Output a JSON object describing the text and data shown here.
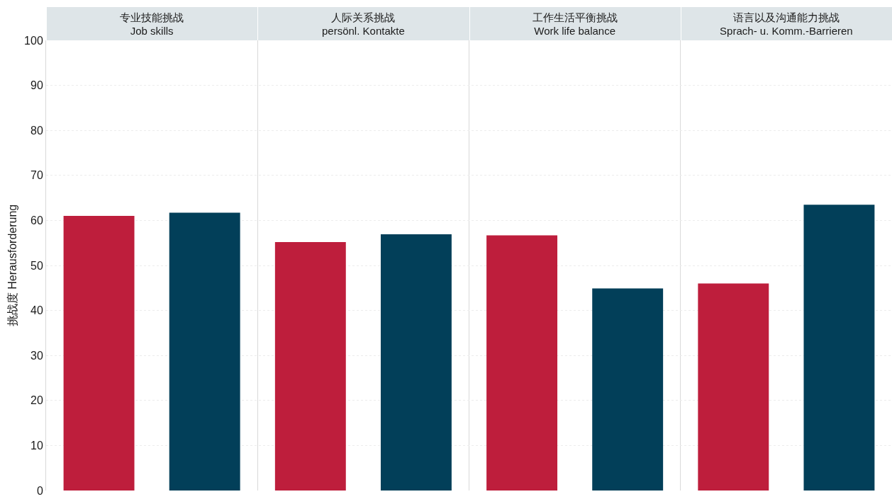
{
  "chart_data": {
    "type": "bar",
    "ylabel": "挑战度 Herausforderung",
    "categories": [
      "专业技能挑战\nJob skills",
      "人际关系挑战\npersönl. Kontakte",
      "工作生活平衡挑战\nWork life balance",
      "语言以及沟通能力挑战\nSprach- u. Komm.-Barrieren"
    ],
    "series": [
      {
        "color": "#be1e3c",
        "values": [
          61.0,
          55.2,
          56.7,
          46.0
        ]
      },
      {
        "color": "#023f59",
        "values": [
          61.7,
          56.9,
          44.9,
          63.5
        ]
      }
    ],
    "ylim": [
      0,
      100
    ],
    "yticks": [
      0,
      10,
      20,
      30,
      40,
      50,
      60,
      70,
      80,
      90,
      100
    ],
    "grid": true
  }
}
